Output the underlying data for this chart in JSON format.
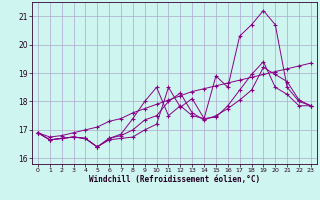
{
  "xlabel": "Windchill (Refroidissement éolien,°C)",
  "bg_color": "#cff5f0",
  "grid_color": "#aaaacc",
  "line_color": "#880088",
  "xlim": [
    -0.5,
    23.5
  ],
  "ylim": [
    15.8,
    21.5
  ],
  "yticks": [
    16,
    17,
    18,
    19,
    20,
    21
  ],
  "xticks": [
    0,
    1,
    2,
    3,
    4,
    5,
    6,
    7,
    8,
    9,
    10,
    11,
    12,
    13,
    14,
    15,
    16,
    17,
    18,
    19,
    20,
    21,
    22,
    23
  ],
  "series": {
    "line_straight": [
      16.9,
      16.75,
      16.8,
      16.9,
      17.0,
      17.1,
      17.3,
      17.4,
      17.6,
      17.75,
      17.9,
      18.05,
      18.2,
      18.35,
      18.45,
      18.55,
      18.65,
      18.75,
      18.85,
      18.95,
      19.05,
      19.15,
      19.25,
      19.35
    ],
    "line_zigzag": [
      16.9,
      16.65,
      16.7,
      16.75,
      16.7,
      16.4,
      16.65,
      16.7,
      16.75,
      17.0,
      17.2,
      18.5,
      17.8,
      18.1,
      17.4,
      18.9,
      18.5,
      20.3,
      20.7,
      21.2,
      20.7,
      18.5,
      18.0,
      17.85
    ],
    "line_mid1": [
      16.9,
      16.65,
      16.7,
      16.75,
      16.7,
      16.4,
      16.7,
      16.85,
      17.4,
      18.0,
      18.5,
      17.5,
      17.85,
      17.5,
      17.4,
      17.45,
      17.85,
      18.4,
      18.95,
      19.4,
      18.5,
      18.25,
      17.85,
      17.85
    ],
    "line_mid2": [
      16.9,
      16.65,
      16.7,
      16.75,
      16.7,
      16.4,
      16.7,
      16.8,
      17.0,
      17.35,
      17.5,
      18.0,
      18.3,
      17.6,
      17.35,
      17.5,
      17.75,
      18.05,
      18.4,
      19.2,
      18.95,
      18.7,
      18.05,
      17.85
    ]
  }
}
